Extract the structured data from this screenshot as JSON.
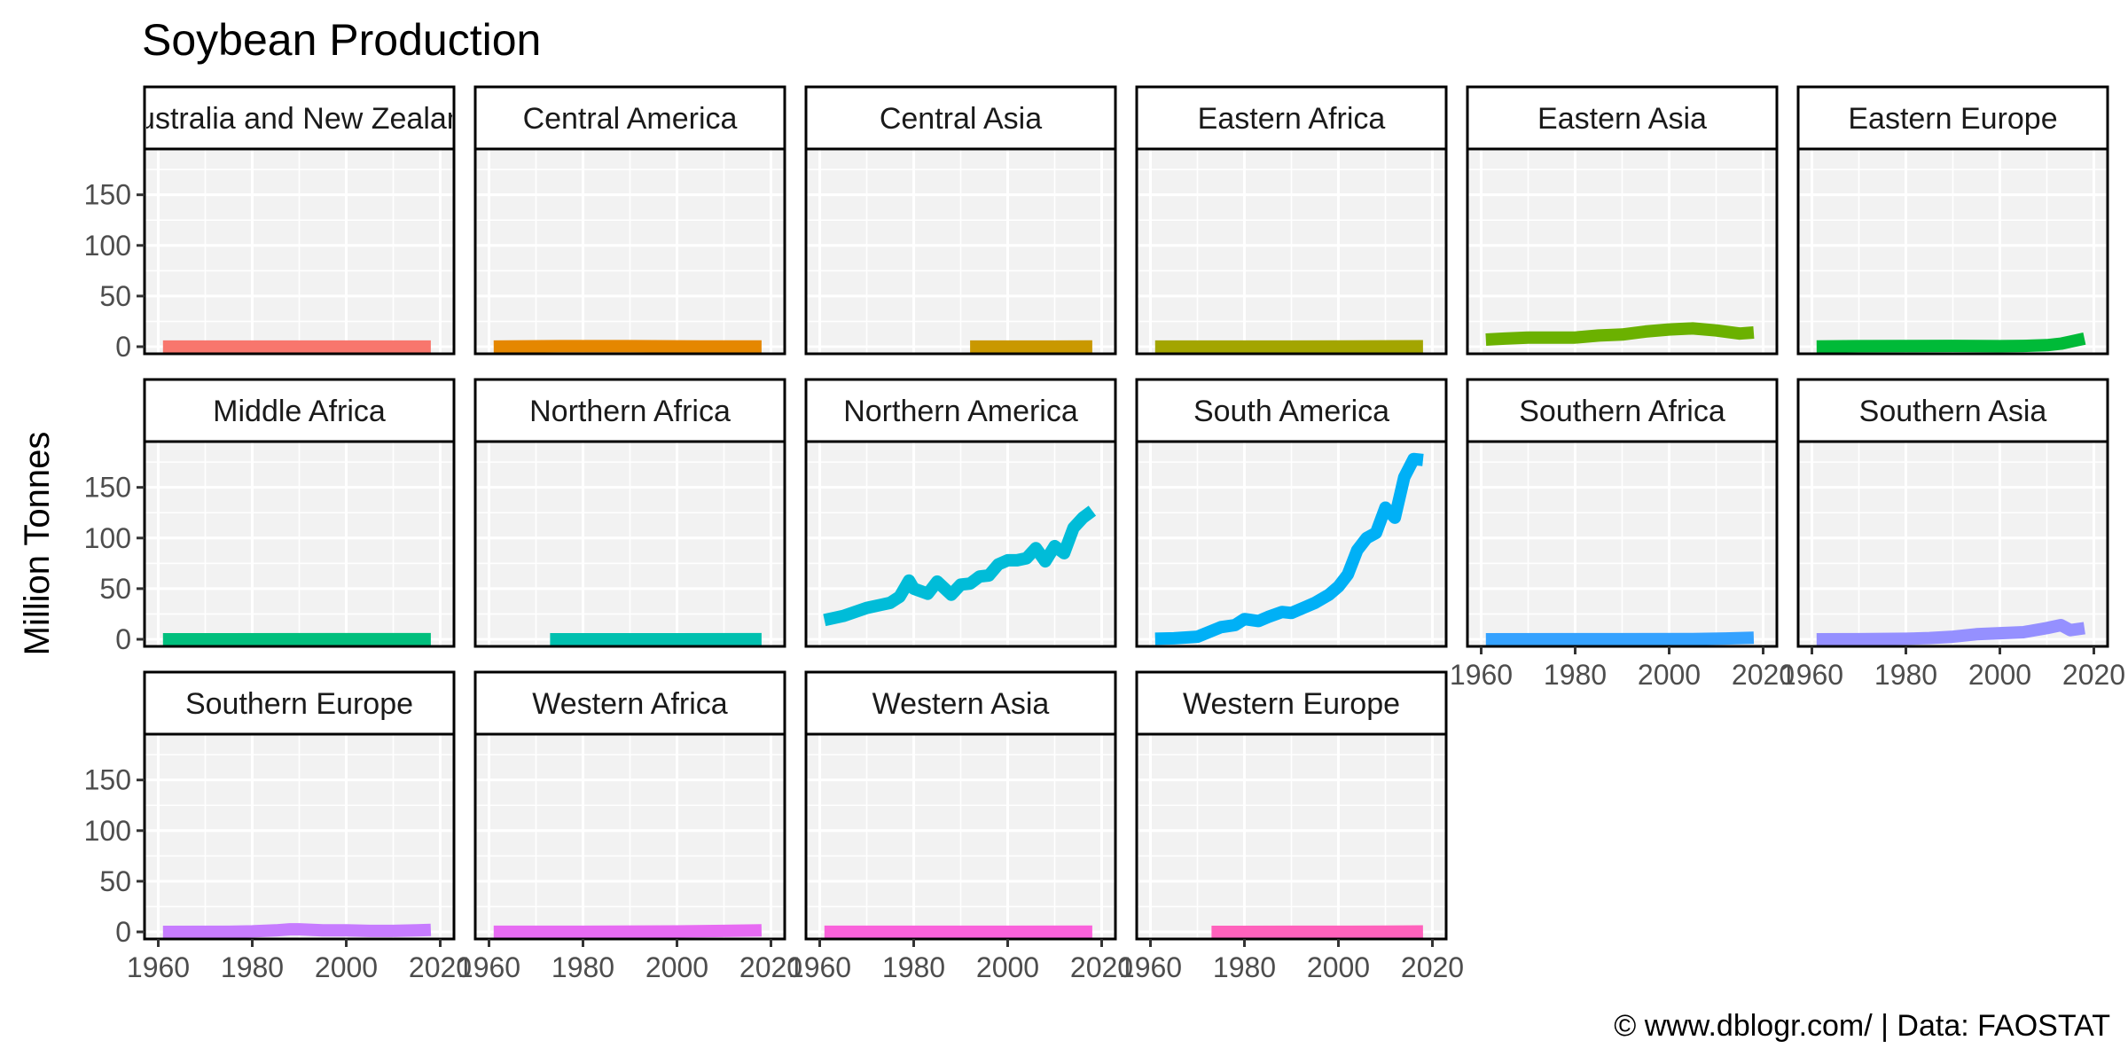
{
  "chart_data": {
    "type": "line",
    "title": "Soybean Production",
    "xlabel": "",
    "ylabel": "Million Tonnes",
    "caption": "© www.dblogr.com/ | Data: FAOSTAT",
    "xlim": [
      1960,
      2020
    ],
    "ylim": [
      0,
      190
    ],
    "x_ticks": [
      1960,
      1980,
      2000,
      2020
    ],
    "y_ticks": [
      0,
      50,
      100,
      150
    ],
    "grid": true,
    "legend": "none",
    "facets": [
      {
        "name": "Australia and New Zealand",
        "color": "#F8766D",
        "x": [
          1961,
          2018
        ],
        "y": [
          0.1,
          0.1
        ]
      },
      {
        "name": "Central America",
        "color": "#E58700",
        "x": [
          1961,
          1975,
          1990,
          2005,
          2018
        ],
        "y": [
          0.1,
          0.5,
          0.5,
          0.3,
          0.3
        ]
      },
      {
        "name": "Central Asia",
        "color": "#C99800",
        "x": [
          1992,
          2000,
          2010,
          2018
        ],
        "y": [
          0.05,
          0.05,
          0.1,
          0.3
        ]
      },
      {
        "name": "Eastern Africa",
        "color": "#A3A500",
        "x": [
          1961,
          1990,
          2018
        ],
        "y": [
          0.05,
          0.1,
          0.4
        ]
      },
      {
        "name": "Eastern Asia",
        "color": "#6BB100",
        "x": [
          1961,
          1965,
          1970,
          1975,
          1980,
          1985,
          1990,
          1995,
          2000,
          2005,
          2010,
          2015,
          2018
        ],
        "y": [
          7,
          8,
          9,
          9,
          9,
          11,
          12,
          15,
          17,
          18,
          16,
          13,
          14
        ]
      },
      {
        "name": "Eastern Europe",
        "color": "#00BA38",
        "x": [
          1961,
          1970,
          1980,
          1990,
          2000,
          2005,
          2010,
          2013,
          2015,
          2018
        ],
        "y": [
          0.3,
          0.5,
          0.6,
          0.8,
          0.5,
          0.8,
          1.5,
          3,
          5,
          8
        ]
      },
      {
        "name": "Middle Africa",
        "color": "#00BF7D",
        "x": [
          1961,
          2018
        ],
        "y": [
          0.02,
          0.05
        ]
      },
      {
        "name": "Northern Africa",
        "color": "#00C0AF",
        "x": [
          1973,
          2018
        ],
        "y": [
          0.02,
          0.05
        ]
      },
      {
        "name": "Northern America",
        "color": "#00BCD8",
        "x": [
          1961,
          1965,
          1970,
          1973,
          1975,
          1977,
          1979,
          1980,
          1983,
          1985,
          1988,
          1990,
          1992,
          1994,
          1996,
          1998,
          2000,
          2002,
          2004,
          2006,
          2008,
          2010,
          2012,
          2014,
          2016,
          2018
        ],
        "y": [
          19,
          23,
          31,
          34,
          36,
          42,
          58,
          50,
          45,
          57,
          44,
          54,
          55,
          62,
          63,
          74,
          78,
          78,
          80,
          90,
          77,
          92,
          85,
          110,
          120,
          127
        ]
      },
      {
        "name": "South America",
        "color": "#00B0F6",
        "x": [
          1961,
          1965,
          1970,
          1975,
          1978,
          1980,
          1983,
          1985,
          1988,
          1990,
          1993,
          1995,
          1998,
          2000,
          2002,
          2004,
          2006,
          2008,
          2010,
          2012,
          2014,
          2016,
          2018
        ],
        "y": [
          0.5,
          1,
          2.5,
          12,
          14,
          20,
          18,
          22,
          27,
          26,
          32,
          36,
          44,
          52,
          64,
          88,
          100,
          105,
          130,
          120,
          160,
          178,
          177
        ]
      },
      {
        "name": "Southern Africa",
        "color": "#35A2FF",
        "x": [
          1961,
          1990,
          2005,
          2012,
          2018
        ],
        "y": [
          0.02,
          0.1,
          0.3,
          0.8,
          1.5
        ]
      },
      {
        "name": "Southern Asia",
        "color": "#9590FF",
        "x": [
          1961,
          1970,
          1980,
          1985,
          1990,
          1995,
          2000,
          2005,
          2010,
          2013,
          2015,
          2018
        ],
        "y": [
          0.01,
          0.1,
          0.5,
          1.2,
          2.5,
          5,
          6,
          7,
          11,
          14,
          9,
          11
        ]
      },
      {
        "name": "Southern Europe",
        "color": "#C77CFF",
        "x": [
          1961,
          1975,
          1980,
          1985,
          1988,
          1990,
          1995,
          2000,
          2005,
          2010,
          2015,
          2018
        ],
        "y": [
          0.01,
          0.1,
          0.5,
          1.5,
          2.5,
          2.5,
          1.5,
          1.5,
          1.0,
          1.0,
          1.5,
          2
        ]
      },
      {
        "name": "Western Africa",
        "color": "#E76BF3",
        "x": [
          1961,
          1980,
          2000,
          2010,
          2018
        ],
        "y": [
          0.05,
          0.1,
          0.4,
          1.0,
          1.6
        ]
      },
      {
        "name": "Western Asia",
        "color": "#FA62DB",
        "x": [
          1961,
          1990,
          2018
        ],
        "y": [
          0.05,
          0.1,
          0.2
        ]
      },
      {
        "name": "Western Europe",
        "color": "#FF62BC",
        "x": [
          1973,
          1990,
          2010,
          2018
        ],
        "y": [
          0.02,
          0.1,
          0.2,
          0.4
        ]
      }
    ]
  }
}
